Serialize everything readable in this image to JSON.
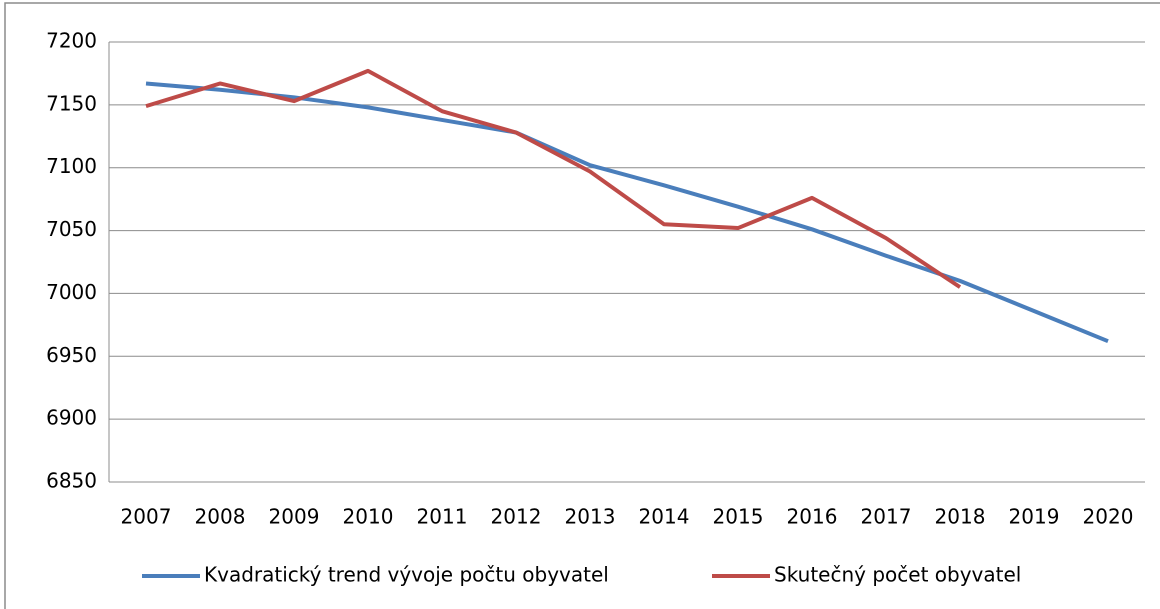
{
  "chart_data": {
    "type": "line",
    "categories": [
      "2007",
      "2008",
      "2009",
      "2010",
      "2011",
      "2012",
      "2013",
      "2014",
      "2015",
      "2016",
      "2017",
      "2018",
      "2019",
      "2020"
    ],
    "series": [
      {
        "name": "Kvadratický trend vývoje počtu obyvatel",
        "color": "#4a7ebb",
        "values": [
          7167,
          7162,
          7156,
          7148,
          7138,
          7128,
          7102,
          7086,
          7069,
          7051,
          7030,
          7010,
          6986,
          6962
        ]
      },
      {
        "name": "Skutečný počet obyvatel",
        "color": "#be4b48",
        "values": [
          7149,
          7167,
          7153,
          7177,
          7145,
          7128,
          7097,
          7055,
          7052,
          7076,
          7044,
          7005,
          null,
          null
        ]
      }
    ],
    "ylim": [
      6850,
      7200
    ],
    "yticks": [
      6850,
      6900,
      6950,
      7000,
      7050,
      7100,
      7150,
      7200
    ],
    "grid": true,
    "legend": "bottom"
  }
}
